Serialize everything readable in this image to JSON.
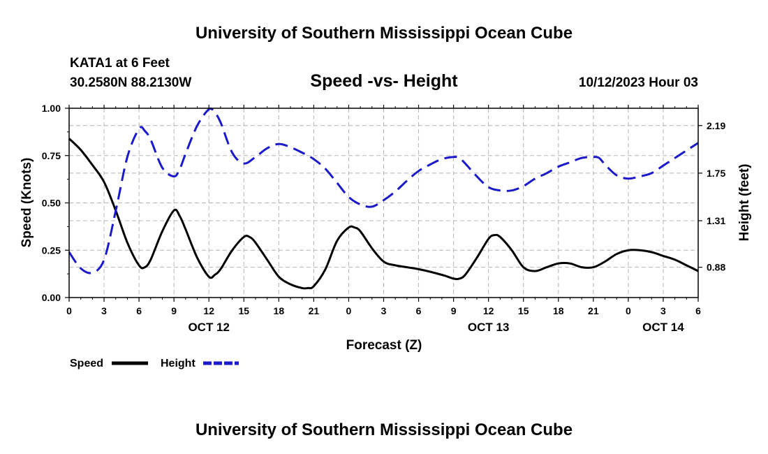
{
  "header": {
    "title": "University of Southern Mississippi Ocean Cube",
    "station": "KATA1 at 6 Feet",
    "coords": "30.2580N  88.2130W",
    "chart_title": "Speed -vs- Height",
    "datetime": "10/12/2023 Hour 03"
  },
  "footer": {
    "title": "University of Southern Mississippi Ocean Cube"
  },
  "colors": {
    "speed": "#000000",
    "height": "#1a1acc",
    "grid": "#b4b4b4"
  },
  "chart_data": {
    "type": "line",
    "title": "Speed -vs- Height",
    "xlabel": "Forecast (Z)",
    "ylabel": "Speed (Knots)",
    "y2label": "Height (feet)",
    "x_range_hours": [
      0,
      54
    ],
    "x_ticks": [
      {
        "hour": 0,
        "label": "0"
      },
      {
        "hour": 3,
        "label": "3"
      },
      {
        "hour": 6,
        "label": "6"
      },
      {
        "hour": 9,
        "label": "9"
      },
      {
        "hour": 12,
        "label": "12"
      },
      {
        "hour": 15,
        "label": "15"
      },
      {
        "hour": 18,
        "label": "18"
      },
      {
        "hour": 21,
        "label": "21"
      },
      {
        "hour": 24,
        "label": "0"
      },
      {
        "hour": 27,
        "label": "3"
      },
      {
        "hour": 30,
        "label": "6"
      },
      {
        "hour": 33,
        "label": "9"
      },
      {
        "hour": 36,
        "label": "12"
      },
      {
        "hour": 39,
        "label": "15"
      },
      {
        "hour": 42,
        "label": "18"
      },
      {
        "hour": 45,
        "label": "21"
      },
      {
        "hour": 48,
        "label": "0"
      },
      {
        "hour": 51,
        "label": "3"
      },
      {
        "hour": 54,
        "label": "6"
      }
    ],
    "date_labels": [
      {
        "hour": 12,
        "label": "OCT 12"
      },
      {
        "hour": 36,
        "label": "OCT 13"
      },
      {
        "hour": 51,
        "label": "OCT 14"
      }
    ],
    "y_range": [
      0,
      1
    ],
    "y_ticks": [
      "0.00",
      "0.25",
      "0.50",
      "0.75",
      "1.00"
    ],
    "y2_range": [
      0.6,
      2.35
    ],
    "y2_ticks": [
      "0.88",
      "1.31",
      "1.75",
      "2.19"
    ],
    "legend": {
      "position": "bottom-left",
      "speed_label": "Speed",
      "height_label": "Height"
    },
    "series": [
      {
        "name": "Speed",
        "axis": "left",
        "style": "solid",
        "x": [
          0,
          1,
          2,
          3,
          4,
          5,
          6,
          6.5,
          7,
          8,
          9,
          9.5,
          10,
          11,
          12,
          12.5,
          13,
          14,
          15,
          15.5,
          16,
          17,
          18,
          19,
          20,
          20.5,
          21,
          22,
          23,
          24,
          24.5,
          25,
          26,
          27,
          28,
          30,
          32,
          33,
          33.5,
          34,
          35,
          36,
          36.5,
          37,
          38,
          39,
          40,
          41,
          42,
          43,
          44,
          45,
          46,
          47,
          48,
          49,
          50,
          51,
          52,
          53,
          54
        ],
        "values": [
          0.84,
          0.78,
          0.7,
          0.61,
          0.46,
          0.29,
          0.17,
          0.16,
          0.2,
          0.35,
          0.46,
          0.43,
          0.36,
          0.21,
          0.11,
          0.12,
          0.15,
          0.25,
          0.32,
          0.32,
          0.29,
          0.2,
          0.11,
          0.07,
          0.05,
          0.05,
          0.06,
          0.15,
          0.3,
          0.37,
          0.37,
          0.35,
          0.26,
          0.19,
          0.17,
          0.15,
          0.12,
          0.1,
          0.1,
          0.12,
          0.21,
          0.31,
          0.33,
          0.32,
          0.25,
          0.16,
          0.14,
          0.16,
          0.18,
          0.18,
          0.16,
          0.16,
          0.19,
          0.23,
          0.25,
          0.25,
          0.24,
          0.22,
          0.2,
          0.17,
          0.14
        ]
      },
      {
        "name": "Height",
        "axis": "right",
        "style": "dashed",
        "x": [
          0,
          1,
          2,
          3,
          4,
          5,
          6,
          6.5,
          7,
          8,
          9,
          9.5,
          10,
          11,
          12,
          12.5,
          13,
          14,
          15,
          16,
          17,
          18,
          19,
          20,
          21,
          22,
          23,
          24,
          25,
          26,
          27,
          28,
          29,
          30,
          31,
          32,
          33,
          33.5,
          34,
          35,
          36,
          37,
          38,
          39,
          40,
          41,
          42,
          43,
          44,
          45,
          45.5,
          46,
          47,
          48,
          49,
          50,
          51,
          52,
          53,
          54
        ],
        "values": [
          1.02,
          0.87,
          0.83,
          0.95,
          1.4,
          1.9,
          2.16,
          2.14,
          2.06,
          1.8,
          1.72,
          1.79,
          1.93,
          2.19,
          2.34,
          2.31,
          2.22,
          1.94,
          1.84,
          1.9,
          1.98,
          2.02,
          1.99,
          1.94,
          1.88,
          1.79,
          1.66,
          1.53,
          1.46,
          1.44,
          1.5,
          1.58,
          1.68,
          1.77,
          1.83,
          1.88,
          1.9,
          1.89,
          1.84,
          1.72,
          1.62,
          1.59,
          1.59,
          1.63,
          1.7,
          1.75,
          1.81,
          1.85,
          1.89,
          1.9,
          1.89,
          1.83,
          1.73,
          1.7,
          1.72,
          1.75,
          1.82,
          1.89,
          1.96,
          2.03
        ]
      }
    ]
  }
}
